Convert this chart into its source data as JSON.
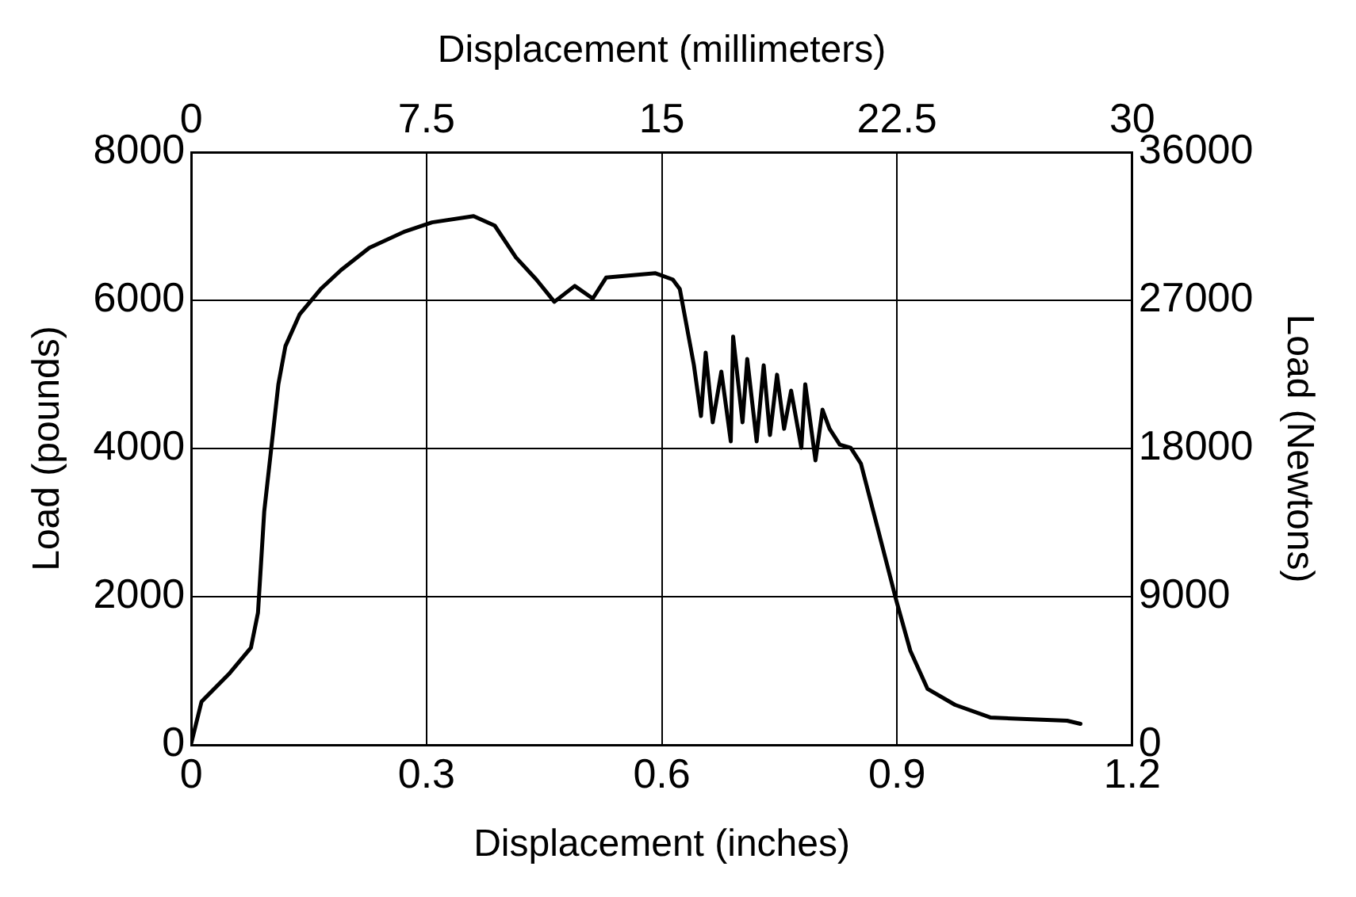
{
  "chart_data": {
    "type": "line",
    "xlabel": "Displacement (inches)",
    "x2label": "Displacement (millimeters)",
    "ylabel": "Load (pounds)",
    "y2label": "Load (Newtons)",
    "x": [
      0,
      0.013,
      0.049,
      0.076,
      0.085,
      0.089,
      0.093,
      0.102,
      0.111,
      0.12,
      0.138,
      0.165,
      0.191,
      0.227,
      0.271,
      0.307,
      0.36,
      0.387,
      0.414,
      0.44,
      0.463,
      0.489,
      0.512,
      0.529,
      0.592,
      0.614,
      0.623,
      0.641,
      0.65,
      0.656,
      0.665,
      0.676,
      0.688,
      0.691,
      0.703,
      0.709,
      0.721,
      0.73,
      0.738,
      0.747,
      0.756,
      0.765,
      0.778,
      0.783,
      0.796,
      0.805,
      0.814,
      0.827,
      0.841,
      0.854,
      0.876,
      0.899,
      0.917,
      0.939,
      0.974,
      1.019,
      1.072,
      1.117,
      1.134
    ],
    "values": [
      25,
      583,
      969,
      1311,
      1783,
      2467,
      3153,
      4009,
      4867,
      5381,
      5808,
      6152,
      6409,
      6708,
      6923,
      7052,
      7137,
      7008,
      6579,
      6281,
      5980,
      6194,
      6024,
      6307,
      6366,
      6281,
      6152,
      5124,
      4438,
      5294,
      4354,
      5037,
      4097,
      5510,
      4354,
      5209,
      4097,
      5124,
      4181,
      4996,
      4266,
      4780,
      4009,
      4867,
      3840,
      4523,
      4266,
      4053,
      4009,
      3796,
      2896,
      1953,
      1270,
      755,
      540,
      370,
      344,
      326,
      283
    ],
    "color": "#000000",
    "xlim": [
      0,
      1.2
    ],
    "xticks": [
      0,
      0.3,
      0.6,
      0.9,
      1.2
    ],
    "x2lim": [
      0,
      30
    ],
    "x2ticks": [
      0,
      7.5,
      15,
      22.5,
      30
    ],
    "ylim": [
      0,
      8000
    ],
    "yticks": [
      0,
      2000,
      4000,
      6000,
      8000
    ],
    "y2lim": [
      0,
      36000
    ],
    "y2ticks": [
      0,
      9000,
      18000,
      27000,
      36000
    ],
    "grid": true
  }
}
